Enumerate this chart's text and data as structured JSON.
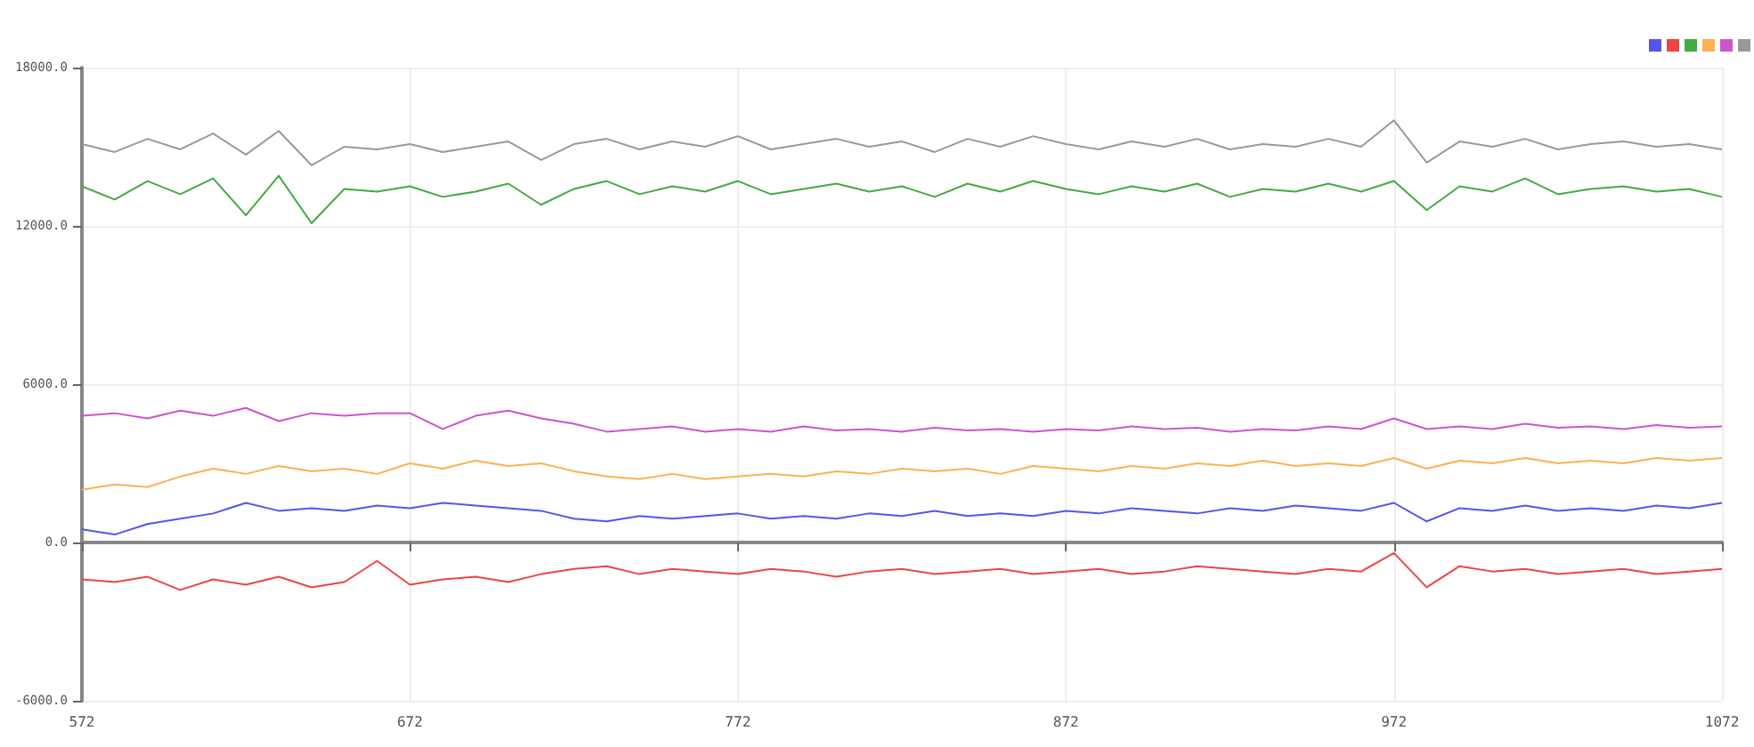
{
  "chart_data": {
    "type": "line",
    "x": [
      572,
      582,
      592,
      602,
      612,
      622,
      632,
      642,
      652,
      662,
      672,
      682,
      692,
      702,
      712,
      722,
      732,
      742,
      752,
      762,
      772,
      782,
      792,
      802,
      812,
      822,
      832,
      842,
      852,
      862,
      872,
      882,
      892,
      902,
      912,
      922,
      932,
      942,
      952,
      962,
      972,
      982,
      992,
      1002,
      1012,
      1022,
      1032,
      1042,
      1052,
      1062,
      1072
    ],
    "series": [
      {
        "color": "#5555ee",
        "values": [
          500,
          300,
          700,
          900,
          1100,
          1500,
          1200,
          1300,
          1200,
          1400,
          1300,
          1500,
          1400,
          1300,
          1200,
          900,
          800,
          1000,
          900,
          1000,
          1100,
          900,
          1000,
          900,
          1100,
          1000,
          1200,
          1000,
          1100,
          1000,
          1200,
          1100,
          1300,
          1200,
          1100,
          1300,
          1200,
          1400,
          1300,
          1200,
          1500,
          800,
          1300,
          1200,
          1400,
          1200,
          1300,
          1200,
          1400,
          1300,
          1500
        ]
      },
      {
        "color": "#ee4444",
        "values": [
          -1400,
          -1500,
          -1300,
          -1800,
          -1400,
          -1600,
          -1300,
          -1700,
          -1500,
          -700,
          -1600,
          -1400,
          -1300,
          -1500,
          -1200,
          -1000,
          -900,
          -1200,
          -1000,
          -1100,
          -1200,
          -1000,
          -1100,
          -1300,
          -1100,
          -1000,
          -1200,
          -1100,
          -1000,
          -1200,
          -1100,
          -1000,
          -1200,
          -1100,
          -900,
          -1000,
          -1100,
          -1200,
          -1000,
          -1100,
          -400,
          -1700,
          -900,
          -1100,
          -1000,
          -1200,
          -1100,
          -1000,
          -1200,
          -1100,
          -1000
        ]
      },
      {
        "color": "#44aa44",
        "values": [
          13500,
          13000,
          13700,
          13200,
          13800,
          12400,
          13900,
          12100,
          13400,
          13300,
          13500,
          13100,
          13300,
          13600,
          12800,
          13400,
          13700,
          13200,
          13500,
          13300,
          13700,
          13200,
          13400,
          13600,
          13300,
          13500,
          13100,
          13600,
          13300,
          13700,
          13400,
          13200,
          13500,
          13300,
          13600,
          13100,
          13400,
          13300,
          13600,
          13300,
          13700,
          12600,
          13500,
          13300,
          13800,
          13200,
          13400,
          13500,
          13300,
          13400,
          13100
        ]
      },
      {
        "color": "#ffb050",
        "values": [
          2000,
          2200,
          2100,
          2500,
          2800,
          2600,
          2900,
          2700,
          2800,
          2600,
          3000,
          2800,
          3100,
          2900,
          3000,
          2700,
          2500,
          2400,
          2600,
          2400,
          2500,
          2600,
          2500,
          2700,
          2600,
          2800,
          2700,
          2800,
          2600,
          2900,
          2800,
          2700,
          2900,
          2800,
          3000,
          2900,
          3100,
          2900,
          3000,
          2900,
          3200,
          2800,
          3100,
          3000,
          3200,
          3000,
          3100,
          3000,
          3200,
          3100,
          3200
        ]
      },
      {
        "color": "#cc55cc",
        "values": [
          4800,
          4900,
          4700,
          5000,
          4800,
          5100,
          4600,
          4900,
          4800,
          4900,
          4900,
          4300,
          4800,
          5000,
          4700,
          4500,
          4200,
          4300,
          4400,
          4200,
          4300,
          4200,
          4400,
          4250,
          4300,
          4200,
          4350,
          4250,
          4300,
          4200,
          4300,
          4250,
          4400,
          4300,
          4350,
          4200,
          4300,
          4250,
          4400,
          4300,
          4700,
          4300,
          4400,
          4300,
          4500,
          4350,
          4400,
          4300,
          4450,
          4350,
          4400
        ]
      },
      {
        "color": "#999999",
        "values": [
          15100,
          14800,
          15300,
          14900,
          15500,
          14700,
          15600,
          14300,
          15000,
          14900,
          15100,
          14800,
          15000,
          15200,
          14500,
          15100,
          15300,
          14900,
          15200,
          15000,
          15400,
          14900,
          15100,
          15300,
          15000,
          15200,
          14800,
          15300,
          15000,
          15400,
          15100,
          14900,
          15200,
          15000,
          15300,
          14900,
          15100,
          15000,
          15300,
          15000,
          16000,
          14400,
          15200,
          15000,
          15300,
          14900,
          15100,
          15200,
          15000,
          15100,
          14900
        ]
      }
    ],
    "xlim": [
      572,
      1072
    ],
    "xticks": [
      572,
      672,
      772,
      872,
      972,
      1072
    ],
    "ylim": [
      -6000,
      18000
    ],
    "yticks": [
      {
        "value": -6000,
        "label": "-6000.0"
      },
      {
        "value": 0,
        "label": "0.0"
      },
      {
        "value": 6000,
        "label": "6000.0"
      },
      {
        "value": 12000,
        "label": "12000.0"
      },
      {
        "value": 18000,
        "label": "18000.0"
      }
    ],
    "grid": true,
    "marker": "none",
    "line_style": "solid"
  }
}
